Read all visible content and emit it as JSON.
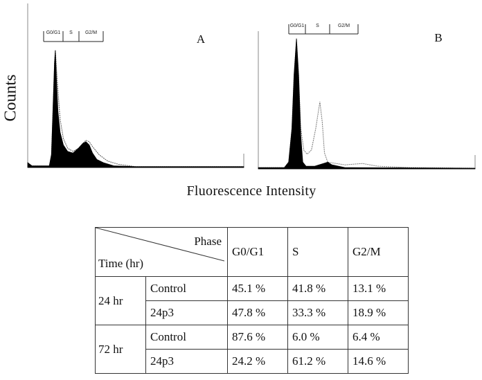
{
  "chart_data": [
    {
      "type": "area",
      "panel_label": "A",
      "ylabel": "Counts",
      "xlabel": "Fluorescence Intensity",
      "xlim": [
        0,
        1000
      ],
      "ylim": [
        0,
        100
      ],
      "gates": [
        "G0/G1",
        "S",
        "G2/M"
      ],
      "series": [
        {
          "name": "filled",
          "color": "#000000",
          "x": [
            0,
            20,
            60,
            100,
            110,
            118,
            124,
            128,
            133,
            140,
            150,
            165,
            185,
            210,
            235,
            255,
            270,
            285,
            300,
            320,
            350,
            400,
            500,
            700,
            1000
          ],
          "values": [
            3,
            1,
            1,
            1,
            8,
            40,
            65,
            73,
            55,
            35,
            22,
            14,
            10,
            9,
            12,
            15,
            16,
            14,
            9,
            5,
            3,
            1,
            0.5,
            0.5,
            0.5
          ]
        },
        {
          "name": "outline",
          "color": "#555555",
          "x": [
            0,
            20,
            60,
            100,
            110,
            118,
            124,
            128,
            134,
            140,
            150,
            165,
            185,
            210,
            235,
            255,
            270,
            285,
            300,
            330,
            370,
            420,
            500,
            700,
            1000
          ],
          "values": [
            3,
            1,
            1,
            1,
            8,
            40,
            65,
            73,
            60,
            48,
            30,
            18,
            12,
            10,
            12,
            15,
            17,
            16,
            13,
            8,
            4,
            2,
            0.5,
            0.5,
            0.5
          ]
        }
      ]
    },
    {
      "type": "area",
      "panel_label": "B",
      "xlim": [
        0,
        1000
      ],
      "ylim": [
        0,
        100
      ],
      "gates": [
        "G0/G1",
        "S",
        "G2/M"
      ],
      "series": [
        {
          "name": "filled",
          "color": "#000000",
          "x": [
            0,
            120,
            140,
            155,
            165,
            176,
            186,
            196,
            205,
            220,
            260,
            300,
            320,
            340,
            370,
            400,
            1000
          ],
          "values": [
            1,
            1,
            5,
            30,
            70,
            97,
            70,
            25,
            5,
            2,
            2,
            4,
            5,
            3,
            2,
            1,
            0.5
          ]
        },
        {
          "name": "outline",
          "color": "#777777",
          "x": [
            0,
            120,
            140,
            155,
            165,
            176,
            186,
            196,
            210,
            225,
            245,
            265,
            284,
            295,
            305,
            320,
            400,
            480,
            550,
            700,
            1000
          ],
          "values": [
            1,
            1,
            5,
            30,
            70,
            97,
            70,
            30,
            14,
            11,
            14,
            30,
            50,
            35,
            12,
            5,
            3,
            4,
            2,
            1,
            0.5
          ]
        }
      ]
    }
  ],
  "table": {
    "header_phase": "Phase",
    "header_time": "Time (hr)",
    "columns": [
      "G0/G1",
      "S",
      "G2/M"
    ],
    "groups": [
      {
        "time": "24 hr",
        "rows": [
          {
            "label": "Control",
            "values": [
              "45.1 %",
              "41.8 %",
              "13.1 %"
            ]
          },
          {
            "label": "24p3",
            "values": [
              "47.8 %",
              "33.3 %",
              "18.9 %"
            ]
          }
        ]
      },
      {
        "time": "72 hr",
        "rows": [
          {
            "label": "Control",
            "values": [
              "87.6 %",
              "6.0 %",
              "6.4 %"
            ]
          },
          {
            "label": "24p3",
            "values": [
              "24.2 %",
              "61.2 %",
              "14.6 %"
            ]
          }
        ]
      }
    ]
  }
}
